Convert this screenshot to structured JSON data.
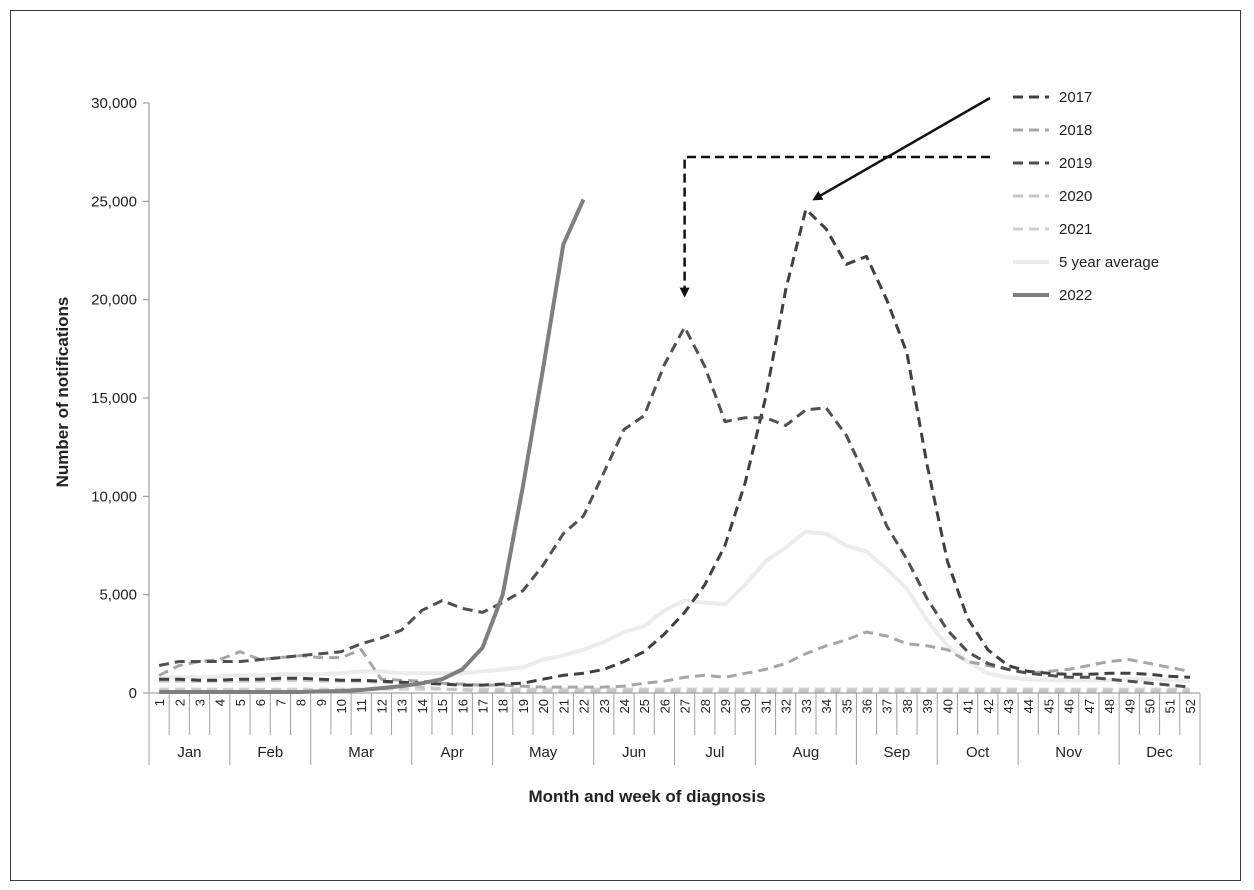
{
  "chart_data": {
    "type": "line",
    "xlabel": "Month and week of diagnosis",
    "ylabel": "Number of notifications",
    "ylim": [
      0,
      30000
    ],
    "yticks": [
      0,
      5000,
      10000,
      15000,
      20000,
      25000,
      30000
    ],
    "ytick_labels": [
      "0",
      "5,000",
      "10,000",
      "15,000",
      "20,000",
      "25,000",
      "30,000"
    ],
    "grid": false,
    "legend_position": "top-right",
    "x": [
      1,
      2,
      3,
      4,
      5,
      6,
      7,
      8,
      9,
      10,
      11,
      12,
      13,
      14,
      15,
      16,
      17,
      18,
      19,
      20,
      21,
      22,
      23,
      24,
      25,
      26,
      27,
      28,
      29,
      30,
      31,
      32,
      33,
      34,
      35,
      36,
      37,
      38,
      39,
      40,
      41,
      42,
      43,
      44,
      45,
      46,
      47,
      48,
      49,
      50,
      51,
      52
    ],
    "months": [
      {
        "name": "Jan",
        "from": 1,
        "to": 4
      },
      {
        "name": "Feb",
        "from": 5,
        "to": 8
      },
      {
        "name": "Mar",
        "from": 9,
        "to": 13
      },
      {
        "name": "Apr",
        "from": 14,
        "to": 17
      },
      {
        "name": "May",
        "from": 18,
        "to": 22
      },
      {
        "name": "Jun",
        "from": 23,
        "to": 26
      },
      {
        "name": "Jul",
        "from": 27,
        "to": 30
      },
      {
        "name": "Aug",
        "from": 31,
        "to": 35
      },
      {
        "name": "Sep",
        "from": 36,
        "to": 39
      },
      {
        "name": "Oct",
        "from": 40,
        "to": 43
      },
      {
        "name": "Nov",
        "from": 44,
        "to": 48
      },
      {
        "name": "Dec",
        "from": 49,
        "to": 52
      }
    ],
    "series": [
      {
        "name": "2017",
        "color": "#404040",
        "style": "dashed",
        "width": 3,
        "values": [
          700,
          700,
          650,
          650,
          700,
          700,
          750,
          750,
          700,
          650,
          650,
          600,
          550,
          500,
          450,
          400,
          400,
          450,
          500,
          700,
          900,
          1000,
          1200,
          1600,
          2100,
          3000,
          4100,
          5500,
          7500,
          10700,
          15000,
          20500,
          24600,
          23600,
          21800,
          22200,
          20000,
          17300,
          11600,
          6700,
          3800,
          2200,
          1400,
          1100,
          1000,
          950,
          950,
          1000,
          1000,
          950,
          850,
          800
        ]
      },
      {
        "name": "2018",
        "color": "#a6a6a6",
        "style": "dashed",
        "width": 3,
        "values": [
          900,
          1400,
          1600,
          1700,
          2100,
          1700,
          1800,
          1900,
          1800,
          1800,
          2200,
          700,
          650,
          600,
          500,
          450,
          400,
          400,
          350,
          300,
          300,
          300,
          300,
          350,
          500,
          600,
          800,
          900,
          800,
          1000,
          1200,
          1500,
          2000,
          2400,
          2700,
          3100,
          2900,
          2500,
          2400,
          2200,
          1600,
          1400,
          1200,
          1000,
          1100,
          1200,
          1400,
          1600,
          1700,
          1500,
          1300,
          1100
        ]
      },
      {
        "name": "2019",
        "color": "#505050",
        "style": "dashed",
        "width": 3,
        "values": [
          1400,
          1600,
          1600,
          1600,
          1600,
          1700,
          1800,
          1900,
          2000,
          2100,
          2500,
          2800,
          3200,
          4200,
          4700,
          4300,
          4100,
          4600,
          5200,
          6500,
          8100,
          9000,
          11200,
          13400,
          14100,
          16700,
          18600,
          16600,
          13800,
          14000,
          14000,
          13600,
          14400,
          14500,
          13100,
          10900,
          8500,
          6800,
          4800,
          3200,
          2100,
          1500,
          1200,
          1000,
          900,
          800,
          800,
          700,
          600,
          500,
          400,
          300
        ]
      },
      {
        "name": "2020",
        "color": "#c6c6c6",
        "style": "dashed",
        "width": 3,
        "values": [
          600,
          600,
          600,
          600,
          600,
          600,
          650,
          650,
          600,
          600,
          600,
          550,
          500,
          300,
          200,
          150,
          100,
          100,
          100,
          100,
          100,
          100,
          100,
          100,
          100,
          100,
          100,
          100,
          100,
          100,
          100,
          100,
          100,
          100,
          100,
          100,
          100,
          100,
          100,
          100,
          100,
          100,
          100,
          100,
          100,
          100,
          100,
          100,
          100,
          100,
          100,
          100
        ]
      },
      {
        "name": "2021",
        "color": "#d0d0d0",
        "style": "dashed",
        "width": 3,
        "values": [
          200,
          200,
          200,
          200,
          200,
          200,
          200,
          200,
          200,
          200,
          200,
          200,
          200,
          200,
          200,
          200,
          200,
          200,
          200,
          200,
          200,
          200,
          200,
          200,
          200,
          200,
          200,
          200,
          200,
          200,
          200,
          200,
          200,
          200,
          200,
          200,
          200,
          200,
          200,
          200,
          200,
          200,
          200,
          200,
          200,
          200,
          200,
          200,
          200,
          200,
          200,
          200
        ]
      },
      {
        "name": "5 year average",
        "color": "#ececec",
        "style": "solid",
        "width": 4,
        "values": [
          800,
          800,
          800,
          850,
          900,
          900,
          950,
          950,
          950,
          1000,
          1100,
          1100,
          1000,
          1000,
          1000,
          1000,
          1100,
          1200,
          1300,
          1700,
          1900,
          2200,
          2600,
          3100,
          3400,
          4200,
          4700,
          4600,
          4500,
          5500,
          6700,
          7400,
          8200,
          8100,
          7500,
          7200,
          6300,
          5300,
          3700,
          2400,
          1600,
          1000,
          800,
          700,
          650,
          650,
          650,
          650,
          700,
          700,
          650,
          600
        ]
      },
      {
        "name": "2022",
        "color": "#7f7f7f",
        "style": "solid",
        "width": 4,
        "values": [
          50,
          50,
          50,
          50,
          50,
          50,
          50,
          50,
          80,
          100,
          150,
          250,
          350,
          500,
          700,
          1200,
          2300,
          5000,
          10500,
          16500,
          22800,
          25100,
          null,
          null,
          null,
          null,
          null,
          null,
          null,
          null,
          null,
          null,
          null,
          null,
          null,
          null,
          null,
          null,
          null,
          null,
          null,
          null,
          null,
          null,
          null,
          null,
          null,
          null,
          null,
          null,
          null,
          null
        ]
      }
    ],
    "annotations": [
      {
        "type": "dashed-bracket-arrow",
        "target_week": 27,
        "target_value": 20000
      },
      {
        "type": "arrow",
        "target_week": 33.4,
        "target_value": 25000
      }
    ]
  }
}
